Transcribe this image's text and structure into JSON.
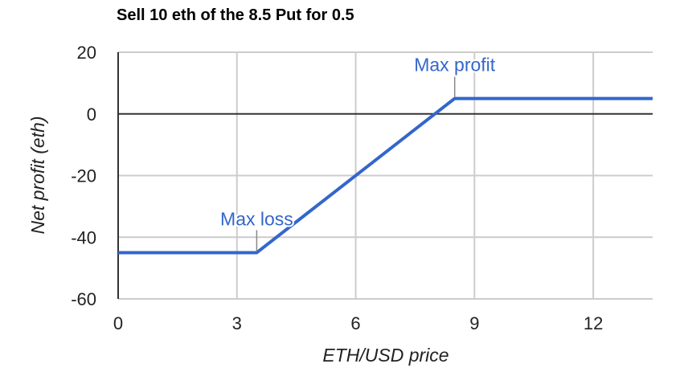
{
  "chart_data": {
    "type": "line",
    "title": "Sell 10 eth of the 8.5 Put for 0.5",
    "xlabel": "ETH/USD price",
    "ylabel": "Net profit (eth)",
    "xlim": [
      0,
      13.5
    ],
    "ylim": [
      -60,
      20
    ],
    "xticks": [
      0,
      3,
      6,
      9,
      12
    ],
    "xtick_labels": [
      "0",
      "3",
      "6",
      "9",
      "12"
    ],
    "yticks": [
      20,
      0,
      -20,
      -40,
      -60
    ],
    "ytick_labels": [
      "20",
      "0",
      "-20",
      "-40",
      "-60"
    ],
    "grid": true,
    "legend": "none",
    "series": [
      {
        "color": "#3366cc",
        "x": [
          0,
          3.5,
          8.5,
          13.5
        ],
        "y": [
          -45,
          -45,
          5,
          5
        ]
      }
    ],
    "annotations": [
      {
        "text": "Max loss",
        "x": 3.5,
        "y": -45,
        "color": "#3366cc"
      },
      {
        "text": "Max profit",
        "x": 8.5,
        "y": 5,
        "color": "#3366cc"
      }
    ]
  }
}
